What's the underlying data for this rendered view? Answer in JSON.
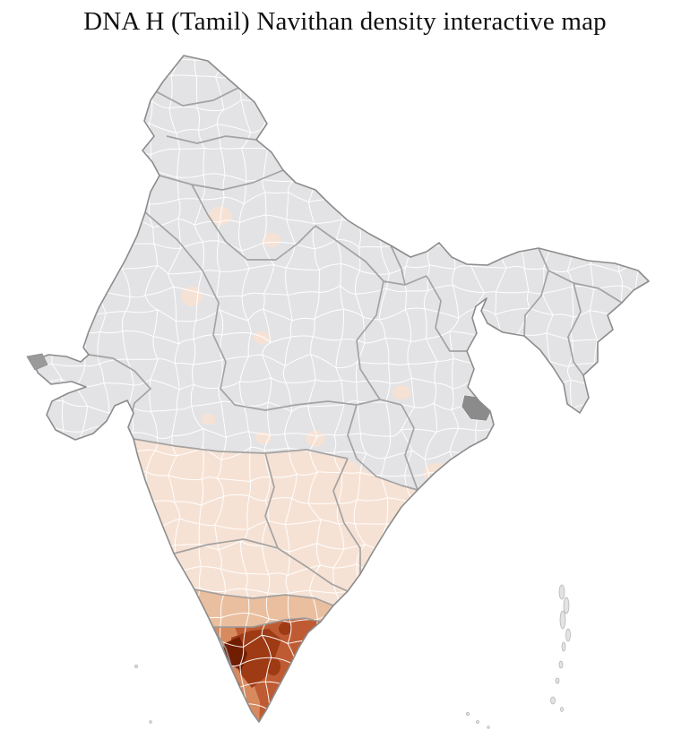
{
  "title": "DNA H (Tamil) Navithan density interactive map",
  "map": {
    "country": "India",
    "unit": "districts",
    "colors": {
      "background": "#ffffff",
      "district_base": "#e3e3e5",
      "district_border": "#ffffff",
      "state_border": "#9b9b9b",
      "country_outline": "#8c8c8c",
      "no_data": "#8b8b8b",
      "density_levels": [
        {
          "rank": 1,
          "hex": "#f6e2d5"
        },
        {
          "rank": 2,
          "hex": "#eabf9f"
        },
        {
          "rank": 3,
          "hex": "#d78a5e"
        },
        {
          "rank": 4,
          "hex": "#bf5b33"
        },
        {
          "rank": 5,
          "hex": "#9e3a14"
        },
        {
          "rank": 6,
          "hex": "#701d02"
        }
      ]
    }
  }
}
